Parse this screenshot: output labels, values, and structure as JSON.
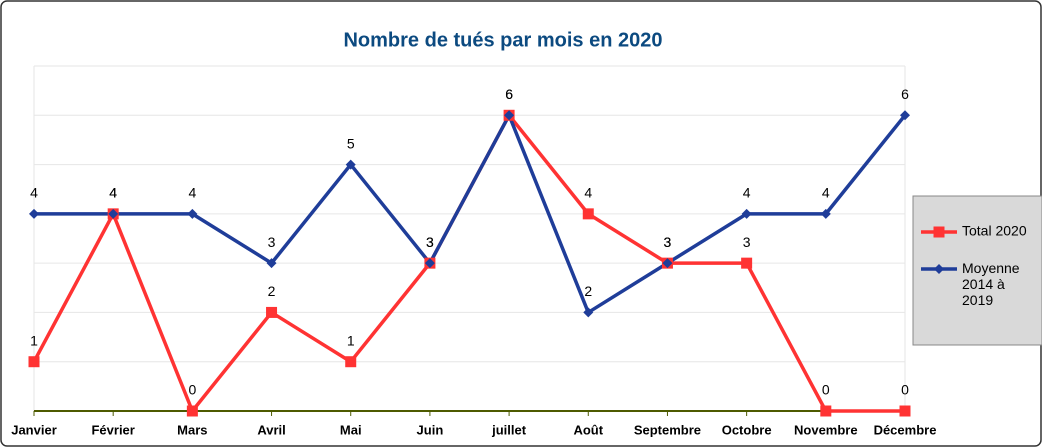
{
  "chart_data": {
    "type": "line",
    "title": "Nombre de tués par mois en 2020",
    "categories": [
      "Janvier",
      "Février",
      "Mars",
      "Avril",
      "Mai",
      "Juin",
      "juillet",
      "Août",
      "Septembre",
      "Octobre",
      "Novembre",
      "Décembre"
    ],
    "series": [
      {
        "name": "Total 2020",
        "color": "#ff3333",
        "marker": "square",
        "values": [
          1,
          4,
          0,
          2,
          1,
          3,
          6,
          4,
          3,
          3,
          0,
          0
        ]
      },
      {
        "name": "Moyenne 2014 à 2019",
        "color": "#1f3d99",
        "marker": "diamond",
        "values": [
          4,
          4,
          4,
          3,
          5,
          3,
          6,
          2,
          3,
          4,
          4,
          6
        ]
      }
    ],
    "ylim": [
      0,
      7
    ],
    "yticks": [
      0,
      1,
      2,
      3,
      4,
      5,
      6,
      7
    ],
    "grid": true,
    "legend": "right"
  }
}
